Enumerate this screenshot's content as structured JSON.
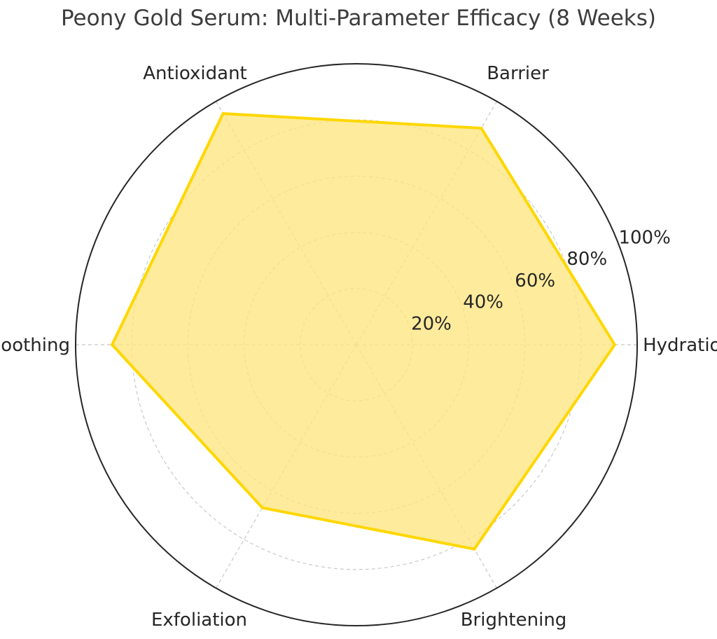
{
  "chart_data": {
    "type": "radar",
    "title": "Peony Gold Serum: Multi-Parameter Efficacy (8 Weeks)",
    "categories": [
      "Hydration",
      "Barrier",
      "Antioxidant",
      "Soothing",
      "Exfoliation",
      "Brightening"
    ],
    "series": [
      {
        "values": [
          92,
          89,
          95,
          87,
          67,
          84
        ]
      }
    ],
    "rlim": [
      0,
      100
    ],
    "radial_ticks": [
      20,
      40,
      60,
      80,
      100
    ],
    "radial_tick_labels": [
      "20%",
      "40%",
      "60%",
      "80%",
      "100%"
    ],
    "grid": true,
    "colors": {
      "fill": "#ffe680",
      "line": "#ffd700",
      "grid": "#c8c8c8",
      "frame": "#262626"
    }
  }
}
